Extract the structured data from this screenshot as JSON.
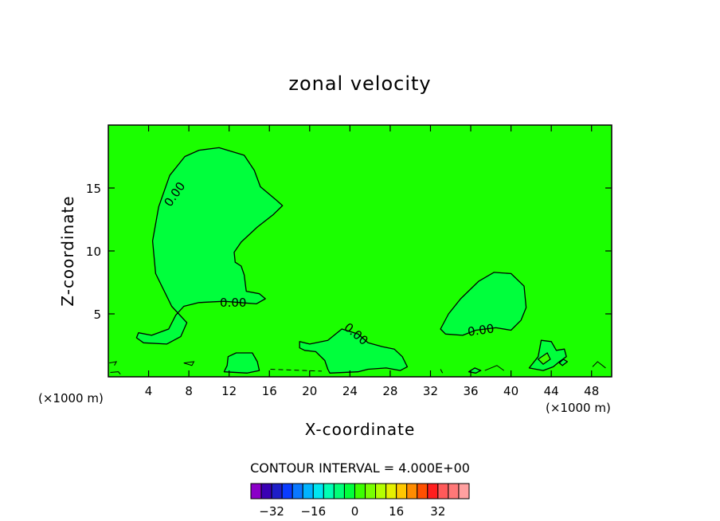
{
  "chart_data": {
    "type": "heatmap",
    "title": "zonal velocity",
    "xlabel": "X-coordinate",
    "ylabel": "Z-coordinate",
    "x_unit_left": "(×1000 m)",
    "x_unit_right": "(×1000 m)",
    "xlim": [
      0,
      50
    ],
    "ylim": [
      0,
      20
    ],
    "x_ticks": [
      4,
      8,
      12,
      16,
      20,
      24,
      28,
      32,
      36,
      40,
      44,
      48
    ],
    "y_ticks": [
      5,
      10,
      15
    ],
    "x_tick_labels": [
      "4",
      "8",
      "12",
      "16",
      "20",
      "24",
      "28",
      "32",
      "36",
      "40",
      "44",
      "48"
    ],
    "y_tick_labels": [
      "5",
      "10",
      "15"
    ],
    "contour_level_label": "0.00",
    "contour_labels": [
      "0.00",
      "0.00",
      "0.00",
      "0.00"
    ],
    "contour_interval_text": "CONTOUR INTERVAL = 4.000E+00",
    "colorbar": {
      "tick_values": [
        -32,
        -16,
        0,
        16,
        32
      ],
      "tick_labels": [
        "−32",
        "−16",
        "0",
        "16",
        "32"
      ],
      "colors": [
        "#8b00c8",
        "#3a00b4",
        "#1e1ec8",
        "#0a3cff",
        "#0a78ff",
        "#00b4ff",
        "#00e6f0",
        "#00ffb4",
        "#00ff78",
        "#00ff3c",
        "#3cff00",
        "#78ff00",
        "#b4ff00",
        "#e6f000",
        "#ffc800",
        "#ff8c00",
        "#ff5000",
        "#ff1e1e",
        "#ff5a5a",
        "#ff7878",
        "#ffa0a0"
      ]
    },
    "background_color": "#1bff00",
    "region_color": "#00ff3c"
  }
}
